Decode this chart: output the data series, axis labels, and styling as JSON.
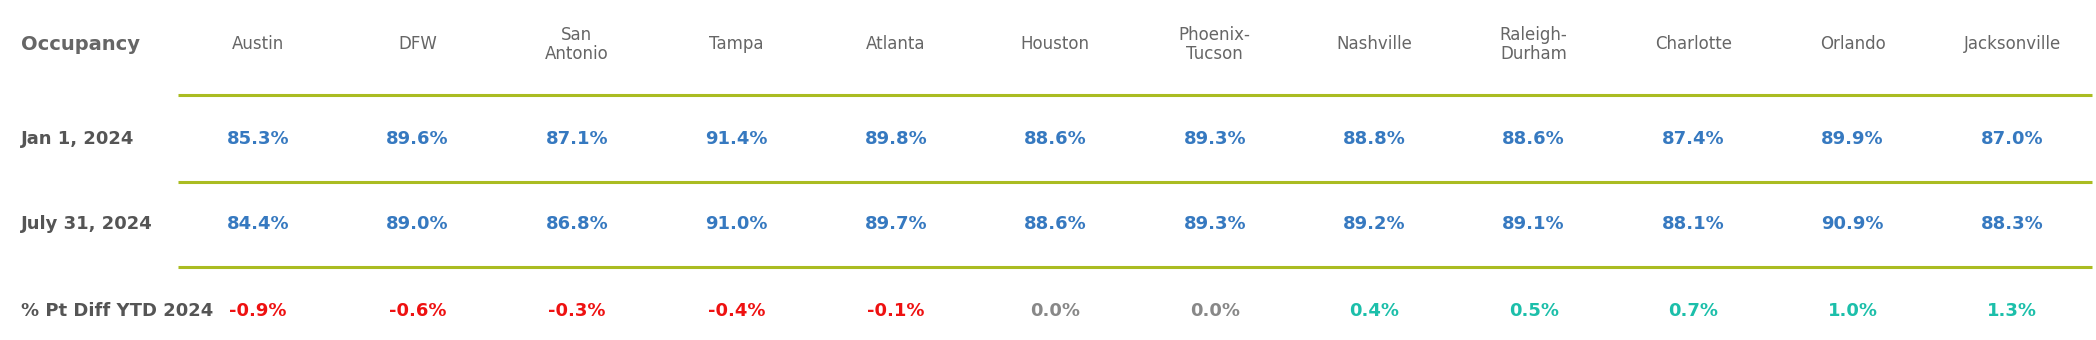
{
  "col_header": "Occupancy",
  "row_labels": [
    "Jan 1, 2024",
    "July 31, 2024",
    "% Pt Diff YTD 2024"
  ],
  "columns": [
    "Austin",
    "DFW",
    "San\nAntonio",
    "Tampa",
    "Atlanta",
    "Houston",
    "Phoenix-\nTucson",
    "Nashville",
    "Raleigh-\nDurham",
    "Charlotte",
    "Orlando",
    "Jacksonville"
  ],
  "row1_values": [
    "85.3%",
    "89.6%",
    "87.1%",
    "91.4%",
    "89.8%",
    "88.6%",
    "89.3%",
    "88.8%",
    "88.6%",
    "87.4%",
    "89.9%",
    "87.0%"
  ],
  "row2_values": [
    "84.4%",
    "89.0%",
    "86.8%",
    "91.0%",
    "89.7%",
    "88.6%",
    "89.3%",
    "89.2%",
    "89.1%",
    "88.1%",
    "90.9%",
    "88.3%"
  ],
  "row3_values": [
    "-0.9%",
    "-0.6%",
    "-0.3%",
    "-0.4%",
    "-0.1%",
    "0.0%",
    "0.0%",
    "0.4%",
    "0.5%",
    "0.7%",
    "1.0%",
    "1.3%"
  ],
  "row3_numeric": [
    -0.9,
    -0.6,
    -0.3,
    -0.4,
    -0.1,
    0.0,
    0.0,
    0.4,
    0.5,
    0.7,
    1.0,
    1.3
  ],
  "color_blue": "#3679C0",
  "color_red": "#EE1111",
  "color_teal": "#1CBFAA",
  "color_zero": "#888888",
  "color_header_text": "#666666",
  "color_row_label": "#555555",
  "color_separator": "#AABC22",
  "background_color": "#FFFFFF",
  "figsize": [
    20.96,
    3.4
  ],
  "dpi": 100,
  "header_fontsize": 14,
  "col_fontsize": 12,
  "data_fontsize": 13,
  "row_label_fontsize": 13
}
